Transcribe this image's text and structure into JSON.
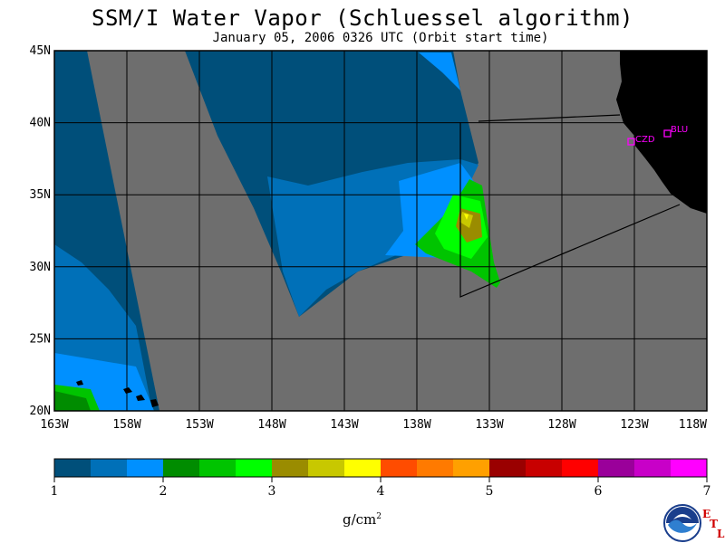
{
  "title": "SSM/I Water Vapor (Schluessel algorithm)",
  "subtitle": "January 05, 2006  0326 UTC  (Orbit start time)",
  "map": {
    "lat_labels": [
      "45N",
      "40N",
      "35N",
      "30N",
      "25N",
      "20N"
    ],
    "lon_labels": [
      "163W",
      "158W",
      "153W",
      "148W",
      "143W",
      "138W",
      "133W",
      "128W",
      "123W",
      "118W"
    ],
    "stations": [
      "CZD",
      "BLU"
    ]
  },
  "colorbar": {
    "colors": [
      "#004f7a",
      "#0070b8",
      "#0090ff",
      "#008c00",
      "#00c400",
      "#00ff00",
      "#9a8c00",
      "#c8c800",
      "#ffff00",
      "#ff4c00",
      "#ff7a00",
      "#ffa000",
      "#9a0000",
      "#c80000",
      "#ff0000",
      "#9a009a",
      "#c800c8",
      "#ff00ff"
    ],
    "tick_labels": [
      "1",
      "2",
      "3",
      "4",
      "5",
      "6",
      "7"
    ],
    "units_base": "g/cm",
    "units_sup": "2"
  },
  "logo": {
    "noaa_text": "NOAA",
    "etl_letters": [
      "E",
      "T",
      "L"
    ]
  },
  "colors": {
    "land": "#000000",
    "no_data": "#6e6e6e",
    "dry_deep": "#004f7a",
    "dry_mid": "#0070b8",
    "moist_light": "#0090ff",
    "station": "#ff00ff",
    "etl": "#d00000"
  }
}
